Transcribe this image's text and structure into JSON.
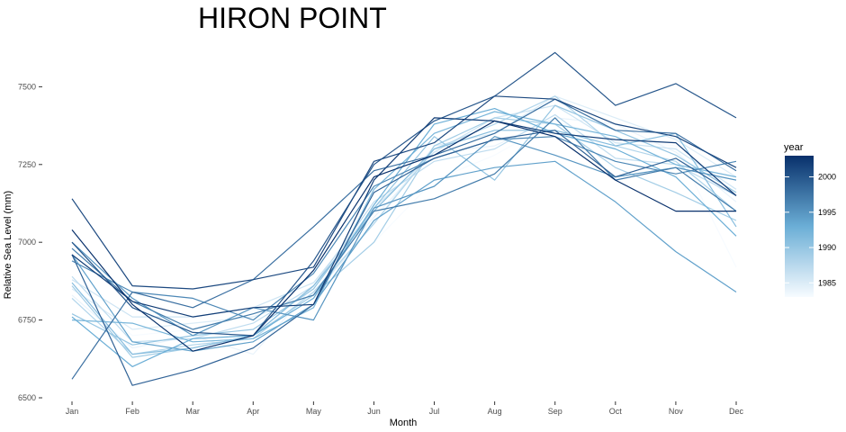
{
  "chart_data": {
    "type": "line",
    "title": "HIRON POINT",
    "xlabel": "Month",
    "ylabel": "Relative Sea Level (mm)",
    "categories": [
      "Jan",
      "Feb",
      "Mar",
      "Apr",
      "May",
      "Jun",
      "Jul",
      "Aug",
      "Sep",
      "Oct",
      "Nov",
      "Dec"
    ],
    "ylim": [
      6500,
      7640
    ],
    "yticks": [
      6500,
      6750,
      7000,
      7250,
      7500
    ],
    "ytick_labels": [
      "6500",
      "6750",
      "7000",
      "7250",
      "7500"
    ],
    "grid": false,
    "legend": {
      "title": "year",
      "position": "right",
      "type": "colorbar",
      "range": [
        1983,
        2003
      ],
      "ticks": [
        1985,
        1990,
        1995,
        2000
      ],
      "tick_labels": [
        "1985",
        "1990",
        "1995",
        "2000"
      ],
      "colors": [
        "#f7fbff",
        "#6baed6",
        "#08306b"
      ]
    },
    "series": [
      {
        "year": 1983,
        "values": [
          6860,
          6700,
          6720,
          6780,
          6840,
          7000,
          7200,
          7280,
          7390,
          7330,
          7310,
          6920
        ]
      },
      {
        "year": 1984,
        "values": [
          6830,
          6660,
          6700,
          6640,
          6860,
          7080,
          7290,
          7310,
          7400,
          7380,
          7290,
          7130
        ]
      },
      {
        "year": 1985,
        "values": [
          6850,
          6720,
          6740,
          6760,
          6830,
          7060,
          7310,
          7350,
          7470,
          7400,
          7330,
          7210
        ]
      },
      {
        "year": 1986,
        "values": [
          6880,
          6760,
          6760,
          6790,
          6870,
          7110,
          7290,
          7400,
          7440,
          7320,
          7300,
          7170
        ]
      },
      {
        "year": 1987,
        "values": [
          6890,
          6680,
          6690,
          6740,
          6860,
          7130,
          7260,
          7300,
          7410,
          7270,
          7250,
          7150
        ]
      },
      {
        "year": 1988,
        "values": [
          6820,
          6640,
          6670,
          6690,
          6840,
          7060,
          7300,
          7380,
          7470,
          7310,
          7260,
          7100
        ]
      },
      {
        "year": 1989,
        "values": [
          6860,
          6630,
          6660,
          6700,
          6830,
          7000,
          7310,
          7400,
          7380,
          7240,
          7160,
          7070
        ]
      },
      {
        "year": 1990,
        "values": [
          6770,
          6670,
          6700,
          6720,
          6850,
          7110,
          7340,
          7200,
          7440,
          7360,
          7280,
          7160
        ]
      },
      {
        "year": 1991,
        "values": [
          6870,
          6640,
          6660,
          6700,
          6860,
          7100,
          7300,
          7360,
          7360,
          7310,
          7350,
          7050
        ]
      },
      {
        "year": 1992,
        "values": [
          6750,
          6740,
          6680,
          6690,
          6790,
          7170,
          7350,
          7420,
          7380,
          7340,
          7250,
          7210
        ]
      },
      {
        "year": 1993,
        "values": [
          6760,
          6600,
          6690,
          6700,
          6820,
          7120,
          7380,
          7430,
          7350,
          7300,
          7210,
          7020
        ]
      },
      {
        "year": 1994,
        "values": [
          6960,
          6680,
          6650,
          6680,
          6800,
          7070,
          7200,
          7240,
          7260,
          7130,
          6970,
          6840
        ]
      },
      {
        "year": 1995,
        "values": [
          7000,
          6820,
          6700,
          6790,
          6750,
          7110,
          7180,
          7340,
          7280,
          7210,
          7240,
          7200
        ]
      },
      {
        "year": 1996,
        "values": [
          6940,
          6840,
          6820,
          6750,
          6900,
          7180,
          7270,
          7330,
          7340,
          7260,
          7220,
          7260
        ]
      },
      {
        "year": 1997,
        "values": [
          6980,
          6810,
          6720,
          6770,
          6830,
          7100,
          7140,
          7220,
          7400,
          7200,
          7240,
          7100
        ]
      },
      {
        "year": 1998,
        "values": [
          6560,
          6840,
          6790,
          6880,
          7050,
          7230,
          7280,
          7350,
          7460,
          7360,
          7350,
          7230
        ]
      },
      {
        "year": 1999,
        "values": [
          6960,
          6540,
          6590,
          6660,
          6800,
          7160,
          7270,
          7330,
          7360,
          7210,
          7270,
          7150
        ]
      },
      {
        "year": 2000,
        "values": [
          7000,
          6790,
          6710,
          6700,
          6940,
          7250,
          7390,
          7470,
          7610,
          7440,
          7510,
          7400
        ]
      },
      {
        "year": 2001,
        "values": [
          7140,
          6860,
          6850,
          6880,
          6920,
          7260,
          7320,
          7470,
          7460,
          7380,
          7340,
          7240
        ]
      },
      {
        "year": 2002,
        "values": [
          6960,
          6810,
          6760,
          6790,
          6800,
          7200,
          7400,
          7390,
          7350,
          7330,
          7320,
          7150
        ]
      },
      {
        "year": 2003,
        "values": [
          7040,
          6800,
          6650,
          6700,
          6910,
          7210,
          7280,
          7390,
          7340,
          7200,
          7100,
          7100
        ]
      }
    ]
  }
}
